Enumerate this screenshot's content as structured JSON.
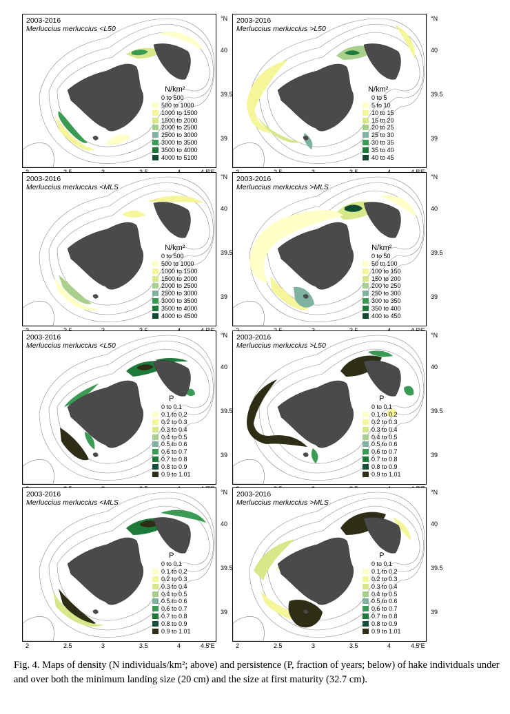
{
  "axis": {
    "lon_ticks": [
      "2",
      "2.5",
      "3",
      "3.5",
      "4",
      "4.5"
    ],
    "lon_unit": "°E",
    "lat_ticks": [
      "40",
      "39.5",
      "39"
    ],
    "lat_unit": "°N"
  },
  "scales": {
    "density_l50_small": {
      "title": "N/km²",
      "items": [
        "0 to 500",
        "500 to 1000",
        "1000 to 1500",
        "1500 to 2000",
        "2000 to 2500",
        "2500 to 3000",
        "3000 to 3500",
        "3500 to 4000",
        "4000 to 5100"
      ]
    },
    "density_l50_large": {
      "title": "N/km²",
      "items": [
        "0 to 5",
        "5 to 10",
        "10 to 15",
        "15 to 20",
        "20 to 25",
        "25 to 30",
        "30 to 35",
        "35 to 40",
        "40 to 45"
      ]
    },
    "density_mls_small": {
      "title": "N/km²",
      "items": [
        "0 to 500",
        "500 to 1000",
        "1000 to 1500",
        "1500 to 2000",
        "2000 to 2500",
        "2500 to 3000",
        "3000 to 3500",
        "3500 to 4000",
        "4000 to 4500"
      ]
    },
    "density_mls_large": {
      "title": "N/km²",
      "items": [
        "0 to 50",
        "50 to 100",
        "100 to 150",
        "150 to 200",
        "200 to 250",
        "250 to 300",
        "300 to 350",
        "350 to 400",
        "400 to 450"
      ]
    },
    "persistence": {
      "title": "P",
      "items": [
        "0 to 0.1",
        "0.1 to 0.2",
        "0.2 to 0.3",
        "0.3 to 0.4",
        "0.4 to 0.5",
        "0.5 to 0.6",
        "0.6 to 0.7",
        "0.7 to 0.8",
        "0.8 to 0.9",
        "0.9 to 1.01"
      ]
    }
  },
  "colors": {
    "density": [
      "#ffffff",
      "#ffffc8",
      "#f5f59a",
      "#d6e88a",
      "#a8d08c",
      "#7fb3a0",
      "#3b9a54",
      "#1e7a3a",
      "#0f4a32"
    ],
    "persistence": [
      "#ffffff",
      "#ffffc8",
      "#f5f59a",
      "#d6e88a",
      "#a8d08c",
      "#7fb3a0",
      "#3b9a54",
      "#1e7a3a",
      "#12503a",
      "#2e2e16"
    ],
    "island": "#4a4a4a"
  },
  "panels": [
    {
      "id": "p1",
      "period": "2003-2016",
      "species": "Merluccius merluccius <L50",
      "scale": "density_l50_small"
    },
    {
      "id": "p2",
      "period": "2003-2016",
      "species": "Merluccius merluccius >L50",
      "scale": "density_l50_large"
    },
    {
      "id": "p3",
      "period": "2003-2016",
      "species": "Merluccius merluccius <MLS",
      "scale": "density_mls_small"
    },
    {
      "id": "p4",
      "period": "2003-2016",
      "species": "Merluccius merluccius >MLS",
      "scale": "density_mls_large"
    },
    {
      "id": "p5",
      "period": "2003-2016",
      "species": "Merluccius merluccius <L50",
      "scale": "persistence"
    },
    {
      "id": "p6",
      "period": "2003-2016",
      "species": "Merluccius merluccius >L50",
      "scale": "persistence"
    },
    {
      "id": "p7",
      "period": "2003-2016",
      "species": "Merluccius merluccius <MLS",
      "scale": "persistence"
    },
    {
      "id": "p8",
      "period": "2003-2016",
      "species": "Merluccius merluccius >MLS",
      "scale": "persistence"
    }
  ],
  "caption": "Fig. 4. Maps of density (N individuals/km²; above) and persistence (P, fraction of years; below) of hake individuals under and over both the minimum landing size (20 cm) and the size at first maturity (32.7 cm)."
}
